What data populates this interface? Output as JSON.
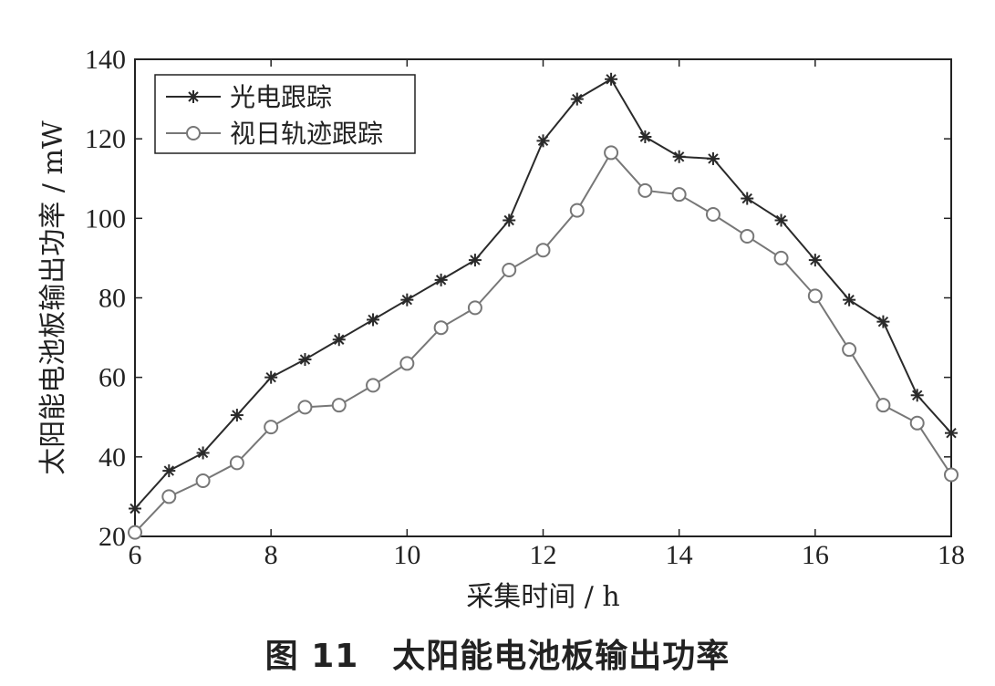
{
  "caption": "图 11　太阳能电池板输出功率",
  "chart_data": {
    "type": "line",
    "title": "",
    "xlabel": "采集时间 / h",
    "ylabel": "太阳能电池板输出功率 / mW",
    "xlim": [
      6,
      18
    ],
    "ylim": [
      20,
      140
    ],
    "xticks": [
      6,
      8,
      10,
      12,
      14,
      16,
      18
    ],
    "yticks": [
      20,
      40,
      60,
      80,
      100,
      120,
      140
    ],
    "grid": false,
    "legend_position": "top-left",
    "x": [
      6,
      6.5,
      7,
      7.5,
      8,
      8.5,
      9,
      9.5,
      10,
      10.5,
      11,
      11.5,
      12,
      12.5,
      13,
      13.5,
      14,
      14.5,
      15,
      15.5,
      16,
      16.5,
      17,
      17.5,
      18
    ],
    "series": [
      {
        "name": "光电跟踪",
        "marker": "asterisk",
        "color": "#2a2a2a",
        "values": [
          27,
          36.5,
          41,
          50.5,
          60,
          64.5,
          69.5,
          74.5,
          79.5,
          84.5,
          89.5,
          99.5,
          119.5,
          130,
          135,
          120.5,
          115.5,
          115,
          105,
          99.5,
          89.5,
          79.5,
          74,
          55.5,
          46
        ]
      },
      {
        "name": "视日轨迹跟踪",
        "marker": "circle",
        "color": "#777777",
        "values": [
          21,
          30,
          34,
          38.5,
          47.5,
          52.5,
          53,
          58,
          63.5,
          72.5,
          77.5,
          87,
          92,
          102,
          116.5,
          107,
          106,
          101,
          95.5,
          90,
          80.5,
          67,
          53,
          48.5,
          35.5
        ]
      }
    ]
  }
}
